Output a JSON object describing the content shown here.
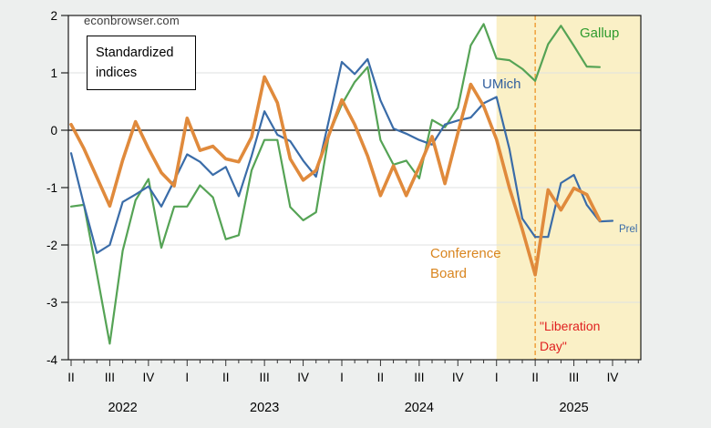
{
  "page": {
    "watermark": "econbrowser.com",
    "note": "Standardized indices"
  },
  "annotations": {
    "gallup": "Gallup",
    "umich": "UMich",
    "conference_board": "Conference\nBoard",
    "prel": "Prel",
    "liberation_day": "\"Liberation\nDay\""
  },
  "colors": {
    "background": "#edefee",
    "plot_background": "#ffffff",
    "shaded_region": "#faf0c6",
    "gridline": "#dfe2e2",
    "zero_line": "#000000",
    "border": "#1a1a1a",
    "gallup_line": "#55a355",
    "umich_line": "#3a6ca8",
    "conference_board_line": "#e08a3c",
    "vline": "#efa03c",
    "liberation_text": "#e01f1f"
  },
  "chart_data": {
    "type": "line",
    "title": "",
    "xlabel": "",
    "ylabel": "",
    "ylim": [
      -4,
      2
    ],
    "y_ticks": [
      2,
      1,
      0,
      -1,
      -2,
      -3,
      -4
    ],
    "grid": true,
    "legend": "inline-labels",
    "x": [
      "2022-04",
      "2022-05",
      "2022-06",
      "2022-07",
      "2022-08",
      "2022-09",
      "2022-10",
      "2022-11",
      "2022-12",
      "2023-01",
      "2023-02",
      "2023-03",
      "2023-04",
      "2023-05",
      "2023-06",
      "2023-07",
      "2023-08",
      "2023-09",
      "2023-10",
      "2023-11",
      "2023-12",
      "2024-01",
      "2024-02",
      "2024-03",
      "2024-04",
      "2024-05",
      "2024-06",
      "2024-07",
      "2024-08",
      "2024-09",
      "2024-10",
      "2024-11",
      "2024-12",
      "2025-01",
      "2025-02",
      "2025-03",
      "2025-04",
      "2025-05",
      "2025-06",
      "2025-07",
      "2025-08",
      "2025-09",
      "2025-10"
    ],
    "x_axis": {
      "quarter_labels": [
        "II",
        "III",
        "IV",
        "I",
        "II",
        "III",
        "IV",
        "I",
        "II",
        "III",
        "IV",
        "I",
        "II",
        "III",
        "IV"
      ],
      "years": [
        {
          "label": "2022",
          "month_index": 4
        },
        {
          "label": "2023",
          "month_index": 15
        },
        {
          "label": "2024",
          "month_index": 27
        },
        {
          "label": "2025",
          "month_index": 39
        }
      ]
    },
    "series": [
      {
        "name": "Gallup",
        "color": "#55a355",
        "values": [
          -1.33,
          -1.3,
          -2.5,
          -3.72,
          -2.1,
          -1.22,
          -0.85,
          -2.05,
          -1.33,
          -1.33,
          -0.96,
          -1.17,
          -1.9,
          -1.83,
          -0.7,
          -0.17,
          -0.17,
          -1.34,
          -1.57,
          -1.43,
          -0.08,
          0.45,
          0.84,
          1.1,
          -0.17,
          -0.6,
          -0.53,
          -0.84,
          0.18,
          0.05,
          0.39,
          1.48,
          1.85,
          1.25,
          1.22,
          1.07,
          0.86,
          1.5,
          1.82,
          1.47,
          1.11,
          1.1,
          null
        ]
      },
      {
        "name": "UMich",
        "color": "#3a6ca8",
        "values": [
          -0.4,
          -1.3,
          -2.14,
          -2.0,
          -1.25,
          -1.12,
          -0.98,
          -1.33,
          -0.88,
          -0.42,
          -0.55,
          -0.78,
          -0.64,
          -1.15,
          -0.45,
          0.33,
          -0.08,
          -0.19,
          -0.53,
          -0.81,
          0.18,
          1.19,
          0.98,
          1.24,
          0.52,
          0.03,
          -0.06,
          -0.17,
          -0.25,
          0.1,
          0.17,
          0.22,
          0.47,
          0.58,
          -0.33,
          -1.54,
          -1.86,
          -1.86,
          -0.92,
          -0.78,
          -1.3,
          -1.59,
          -1.58
        ]
      },
      {
        "name": "Conference Board",
        "color": "#e08a3c",
        "values": [
          0.1,
          -0.32,
          -0.82,
          -1.32,
          -0.52,
          0.15,
          -0.32,
          -0.74,
          -0.97,
          0.21,
          -0.35,
          -0.28,
          -0.5,
          -0.55,
          -0.12,
          0.93,
          0.48,
          -0.5,
          -0.87,
          -0.7,
          -0.08,
          0.53,
          0.1,
          -0.45,
          -1.14,
          -0.62,
          -1.14,
          -0.64,
          -0.11,
          -0.93,
          -0.05,
          0.8,
          0.42,
          -0.16,
          -1.01,
          -1.73,
          -2.52,
          -1.04,
          -1.39,
          -1.01,
          -1.12,
          -1.57,
          null
        ]
      }
    ],
    "shaded_region": {
      "from": "2025-01",
      "to": "end"
    },
    "vline": {
      "at": "2025-04",
      "style": "dashed",
      "label": "\"Liberation Day\""
    }
  }
}
